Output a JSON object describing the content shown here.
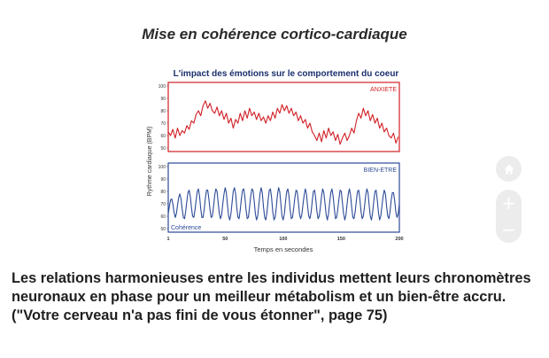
{
  "slide": {
    "title": "Mise en cohérence cortico-cardiaque",
    "caption": "Les relations harmonieuses entre les individus mettent leurs chronomètres neuronaux en phase pour un meilleur métabolism et un bien-être accru. (\"Votre cerveau n'a pas fini de vous étonner\", page 75)"
  },
  "controls": {
    "home_icon": "home-icon",
    "zoom_in_symbol": "+",
    "zoom_out_symbol": "−"
  },
  "colors": {
    "anxiety": "#d11f25",
    "wellbeing": "#2c4a96",
    "title": "#1b2f6e"
  },
  "chart_data": {
    "type": "line",
    "title": "L'impact des émotions sur le comportement du coeur",
    "xlabel": "Temps en secondes",
    "ylabel": "Rythme cardiaque (BPM)",
    "x_ticks": [
      "1",
      "50",
      "100",
      "150",
      "200"
    ],
    "xlim": [
      1,
      200
    ],
    "panels": [
      {
        "label": "ANXIETE",
        "color": "#d11f25",
        "y_ticks": [
          "100",
          "90",
          "80",
          "70",
          "60",
          "50"
        ],
        "ylim": [
          50,
          100
        ],
        "series": {
          "x": [
            1,
            3,
            5,
            7,
            9,
            11,
            13,
            15,
            17,
            19,
            21,
            23,
            25,
            27,
            29,
            31,
            33,
            35,
            37,
            39,
            41,
            43,
            45,
            47,
            49,
            51,
            53,
            55,
            57,
            59,
            61,
            63,
            65,
            67,
            69,
            71,
            73,
            75,
            77,
            79,
            81,
            83,
            85,
            87,
            89,
            91,
            93,
            95,
            97,
            99,
            101,
            103,
            105,
            107,
            109,
            111,
            113,
            115,
            117,
            119,
            121,
            123,
            125,
            127,
            129,
            131,
            133,
            135,
            137,
            139,
            141,
            143,
            145,
            147,
            149,
            151,
            153,
            155,
            157,
            159,
            161,
            163,
            165,
            167,
            169,
            171,
            173,
            175,
            177,
            179,
            181,
            183,
            185,
            187,
            189,
            191,
            193,
            195,
            197,
            199
          ],
          "values": [
            63,
            60,
            65,
            58,
            66,
            60,
            64,
            62,
            68,
            65,
            72,
            70,
            77,
            80,
            76,
            84,
            88,
            82,
            86,
            80,
            78,
            83,
            76,
            80,
            73,
            78,
            70,
            74,
            66,
            73,
            70,
            78,
            72,
            80,
            74,
            82,
            76,
            79,
            73,
            78,
            72,
            75,
            70,
            76,
            72,
            79,
            74,
            82,
            78,
            85,
            80,
            84,
            78,
            82,
            76,
            79,
            72,
            76,
            70,
            73,
            66,
            70,
            63,
            60,
            56,
            62,
            55,
            64,
            58,
            66,
            60,
            63,
            56,
            61,
            53,
            58,
            62,
            56,
            60,
            66,
            62,
            72,
            78,
            74,
            82,
            76,
            80,
            72,
            77,
            70,
            74,
            66,
            70,
            63,
            66,
            60,
            58,
            62,
            54,
            59
          ]
        }
      },
      {
        "label": "BIEN-ETRE",
        "sublabel": "Cohérence",
        "color": "#2c4a96",
        "y_ticks": [
          "100",
          "90",
          "80",
          "70",
          "60",
          "50"
        ],
        "ylim": [
          50,
          100
        ],
        "series": {
          "x": [
            1,
            2,
            3,
            4,
            5,
            6,
            7,
            8,
            9,
            10,
            11,
            12,
            13,
            14,
            15,
            16,
            17,
            18,
            19,
            20,
            21,
            22,
            23,
            24,
            25,
            26,
            27,
            28,
            29,
            30,
            31,
            32,
            33,
            34,
            35,
            36,
            37,
            38,
            39,
            40,
            41,
            42,
            43,
            44,
            45,
            46,
            47,
            48,
            49,
            50,
            51,
            52,
            53,
            54,
            55,
            56,
            57,
            58,
            59,
            60,
            61,
            62,
            63,
            64,
            65,
            66,
            67,
            68,
            69,
            70,
            71,
            72,
            73,
            74,
            75,
            76,
            77,
            78,
            79,
            80,
            81,
            82,
            83,
            84,
            85,
            86,
            87,
            88,
            89,
            90,
            91,
            92,
            93,
            94,
            95,
            96,
            97,
            98,
            99,
            100,
            101,
            102,
            103,
            104,
            105,
            106,
            107,
            108,
            109,
            110,
            111,
            112,
            113,
            114,
            115,
            116,
            117,
            118,
            119,
            120,
            121,
            122,
            123,
            124,
            125,
            126,
            127,
            128,
            129,
            130,
            131,
            132,
            133,
            134,
            135,
            136,
            137,
            138,
            139,
            140,
            141,
            142,
            143,
            144,
            145,
            146,
            147,
            148,
            149,
            150,
            151,
            152,
            153,
            154,
            155,
            156,
            157,
            158,
            159,
            160,
            161,
            162,
            163,
            164,
            165,
            166,
            167,
            168,
            169,
            170,
            171,
            172,
            173,
            174,
            175,
            176,
            177,
            178,
            179,
            180,
            181,
            182,
            183,
            184,
            185,
            186,
            187,
            188,
            189,
            190,
            191,
            192,
            193,
            194,
            195,
            196,
            197,
            198,
            199,
            200
          ],
          "values": [
            62,
            68,
            73,
            74,
            70,
            63,
            59,
            62,
            69,
            75,
            78,
            74,
            66,
            59,
            58,
            64,
            72,
            79,
            81,
            76,
            67,
            60,
            59,
            65,
            73,
            80,
            82,
            76,
            66,
            59,
            59,
            66,
            75,
            81,
            81,
            74,
            65,
            59,
            60,
            68,
            77,
            82,
            80,
            71,
            62,
            58,
            61,
            70,
            78,
            83,
            79,
            69,
            60,
            57,
            62,
            71,
            80,
            83,
            78,
            67,
            59,
            58,
            65,
            74,
            81,
            82,
            75,
            65,
            58,
            59,
            67,
            76,
            82,
            81,
            72,
            62,
            57,
            60,
            69,
            78,
            83,
            79,
            68,
            59,
            57,
            63,
            73,
            81,
            82,
            75,
            64,
            57,
            59,
            67,
            77,
            83,
            80,
            70,
            60,
            57,
            62,
            72,
            80,
            82,
            76,
            65,
            58,
            59,
            66,
            75,
            81,
            80,
            72,
            62,
            58,
            61,
            69,
            77,
            82,
            78,
            68,
            60,
            58,
            63,
            72,
            80,
            81,
            74,
            64,
            58,
            60,
            67,
            76,
            82,
            79,
            70,
            61,
            57,
            62,
            71,
            79,
            82,
            76,
            66,
            58,
            59,
            66,
            74,
            81,
            80,
            71,
            62,
            57,
            61,
            70,
            78,
            82,
            77,
            67,
            59,
            58,
            64,
            73,
            80,
            81,
            74,
            64,
            58,
            60,
            68,
            77,
            82,
            79,
            69,
            60,
            57,
            63,
            72,
            80,
            81,
            73,
            63,
            57,
            60,
            68,
            76,
            81,
            78,
            68,
            60,
            58,
            64,
            73,
            79,
            79,
            72,
            63,
            59,
            62,
            70
          ]
        }
      }
    ]
  }
}
